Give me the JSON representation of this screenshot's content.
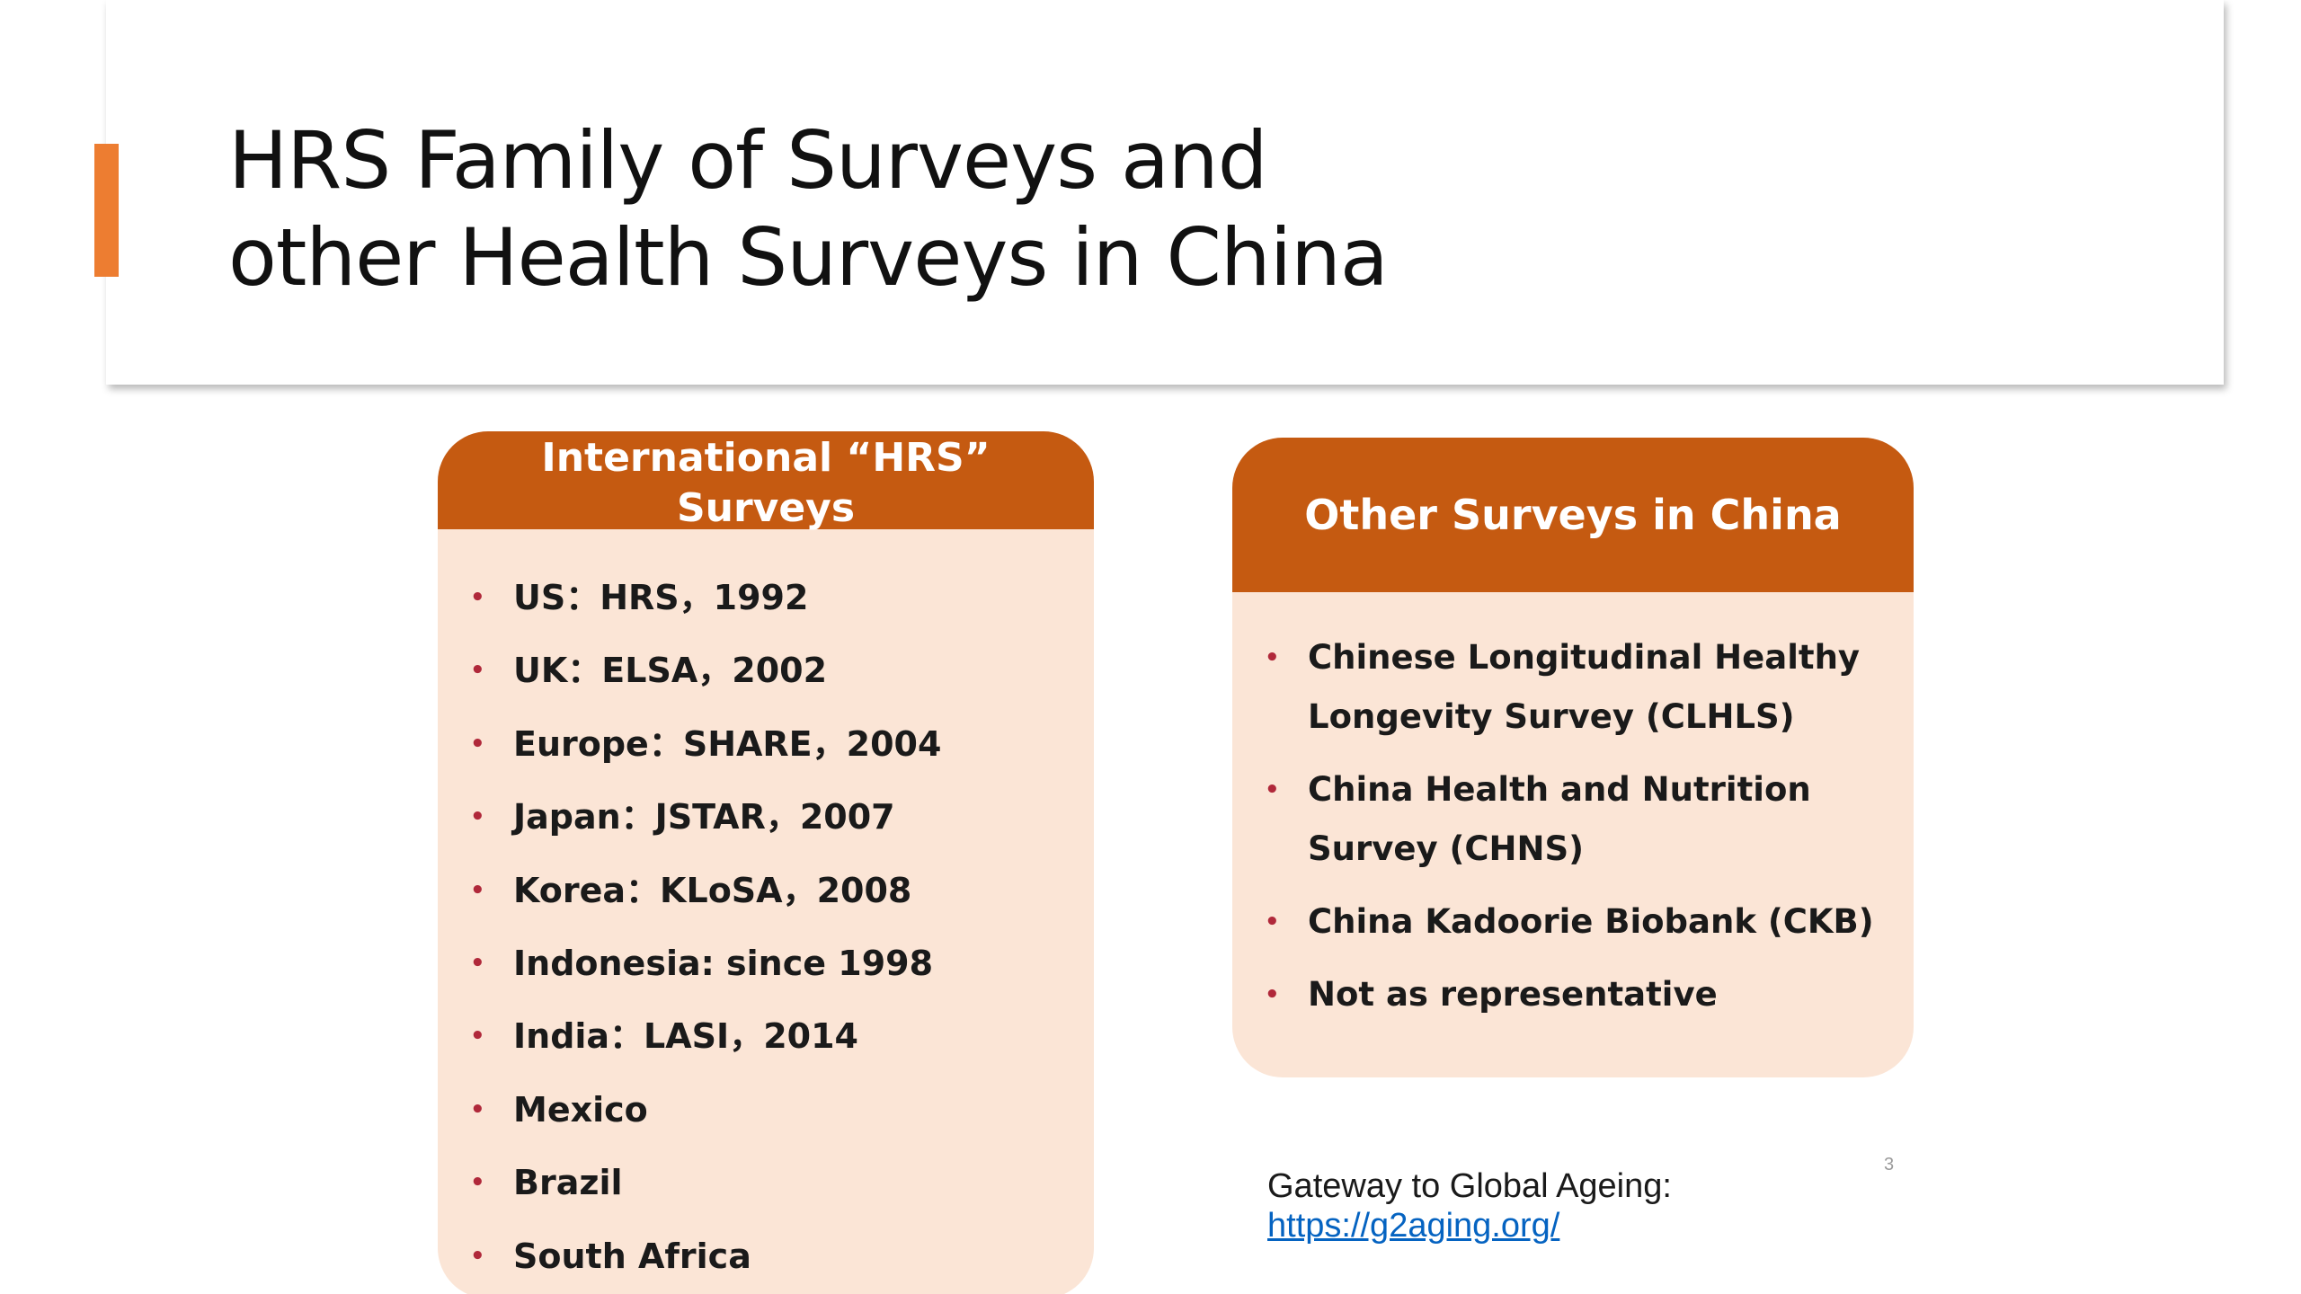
{
  "slide": {
    "title_lines": [
      "HRS Family of Surveys and",
      "other Health Surveys in China"
    ],
    "accent_color": "#ed7d31",
    "page_number": "3"
  },
  "left_panel": {
    "header_lines": [
      "International “HRS”",
      "Surveys"
    ],
    "header_color": "#c55a11",
    "body_color": "#fbe5d6",
    "items": [
      "US：HRS，1992",
      "UK：ELSA，2002",
      "Europe：SHARE，2004",
      "Japan：JSTAR，2007",
      "Korea：KLoSA，2008",
      "Indonesia: since 1998",
      "India：LASI，2014",
      "Mexico",
      "Brazil",
      "South Africa"
    ]
  },
  "right_panel": {
    "header": "Other Surveys in China",
    "items": [
      "Chinese Longitudinal Healthy Longevity Survey (CLHLS)",
      "China Health and Nutrition Survey (CHNS)",
      "China Kadoorie Biobank (CKB)",
      "Not as representative"
    ]
  },
  "footer": {
    "gateway_label": "Gateway to Global Ageing:",
    "gateway_link": "https://g2aging.org/"
  }
}
